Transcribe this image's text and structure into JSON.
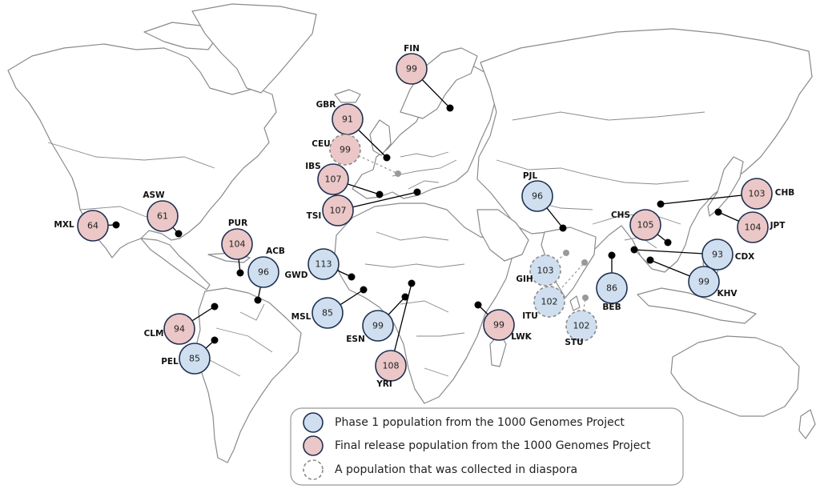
{
  "colors": {
    "phase1_fill": "#cfdff0",
    "final_fill": "#ebc7c7",
    "bubble_stroke": "#1f3050",
    "diaspora_stroke": "#8a8a8a",
    "land_stroke": "#8a8a8a"
  },
  "populations": [
    {
      "code": "FIN",
      "count": "99",
      "kind": "final",
      "diaspora": false
    },
    {
      "code": "GBR",
      "count": "91",
      "kind": "final",
      "diaspora": false
    },
    {
      "code": "CEU",
      "count": "99",
      "kind": "final",
      "diaspora": true
    },
    {
      "code": "IBS",
      "count": "107",
      "kind": "final",
      "diaspora": false
    },
    {
      "code": "TSI",
      "count": "107",
      "kind": "final",
      "diaspora": false
    },
    {
      "code": "PJL",
      "count": "96",
      "kind": "phase1",
      "diaspora": false
    },
    {
      "code": "ASW",
      "count": "61",
      "kind": "final",
      "diaspora": false
    },
    {
      "code": "MXL",
      "count": "64",
      "kind": "final",
      "diaspora": false
    },
    {
      "code": "PUR",
      "count": "104",
      "kind": "final",
      "diaspora": false
    },
    {
      "code": "ACB",
      "count": "96",
      "kind": "phase1",
      "diaspora": false
    },
    {
      "code": "GWD",
      "count": "113",
      "kind": "phase1",
      "diaspora": false
    },
    {
      "code": "MSL",
      "count": "85",
      "kind": "phase1",
      "diaspora": false
    },
    {
      "code": "ESN",
      "count": "99",
      "kind": "phase1",
      "diaspora": false
    },
    {
      "code": "YRI",
      "count": "108",
      "kind": "final",
      "diaspora": false
    },
    {
      "code": "LWK",
      "count": "99",
      "kind": "final",
      "diaspora": false
    },
    {
      "code": "CLM",
      "count": "94",
      "kind": "final",
      "diaspora": false
    },
    {
      "code": "PEL",
      "count": "85",
      "kind": "phase1",
      "diaspora": false
    },
    {
      "code": "GIH",
      "count": "103",
      "kind": "phase1",
      "diaspora": true
    },
    {
      "code": "ITU",
      "count": "102",
      "kind": "phase1",
      "diaspora": true
    },
    {
      "code": "STU",
      "count": "102",
      "kind": "phase1",
      "diaspora": true
    },
    {
      "code": "BEB",
      "count": "86",
      "kind": "phase1",
      "diaspora": false
    },
    {
      "code": "CHS",
      "count": "105",
      "kind": "final",
      "diaspora": false
    },
    {
      "code": "CHB",
      "count": "103",
      "kind": "final",
      "diaspora": false
    },
    {
      "code": "JPT",
      "count": "104",
      "kind": "final",
      "diaspora": false
    },
    {
      "code": "CDX",
      "count": "93",
      "kind": "phase1",
      "diaspora": false
    },
    {
      "code": "KHV",
      "count": "99",
      "kind": "phase1",
      "diaspora": false
    }
  ],
  "legend": {
    "phase1": "Phase 1 population from the 1000 Genomes Project",
    "final": "Final release population from the 1000 Genomes Project",
    "diaspora": "A population that was collected in diaspora"
  }
}
